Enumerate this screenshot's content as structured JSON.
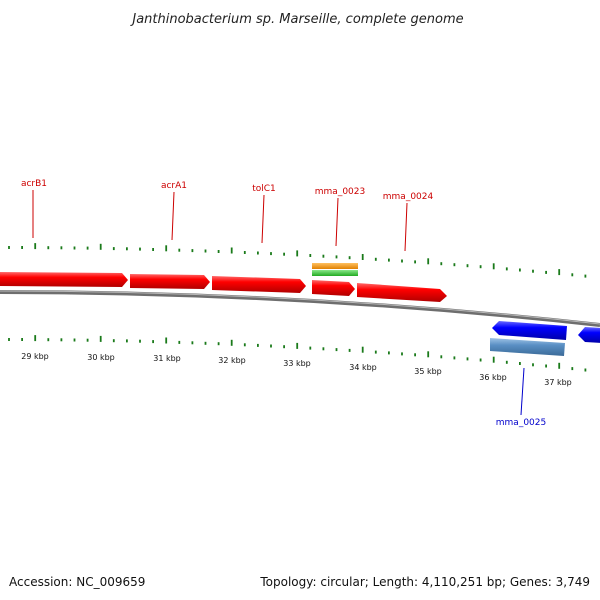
{
  "title": "Janthinobacterium sp. Marseille, complete genome",
  "footer": {
    "accession": "Accession: NC_009659",
    "summary": "Topology: circular; Length: 4,110,251 bp; Genes: 3,749"
  },
  "colors": {
    "forward_gene": "#ff0000",
    "reverse_gene": "#0000ff",
    "reverse_rna": "#5a8fc4",
    "orange_feature": "#ff9900",
    "green_feature": "#33cc33",
    "backbone": "#888888",
    "tick": "#1a7a1a",
    "forward_label": "#cc0000",
    "reverse_label": "#0000cc"
  },
  "ticks": {
    "labels": [
      "29 kbp",
      "30 kbp",
      "31 kbp",
      "32 kbp",
      "33 kbp",
      "34 kbp",
      "35 kbp",
      "36 kbp",
      "37 kbp"
    ]
  },
  "genes": {
    "forward_labels": [
      "acrB1",
      "acrA1",
      "tolC1",
      "mma_0023",
      "mma_0024"
    ],
    "reverse_labels": [
      "mma_0025"
    ]
  }
}
